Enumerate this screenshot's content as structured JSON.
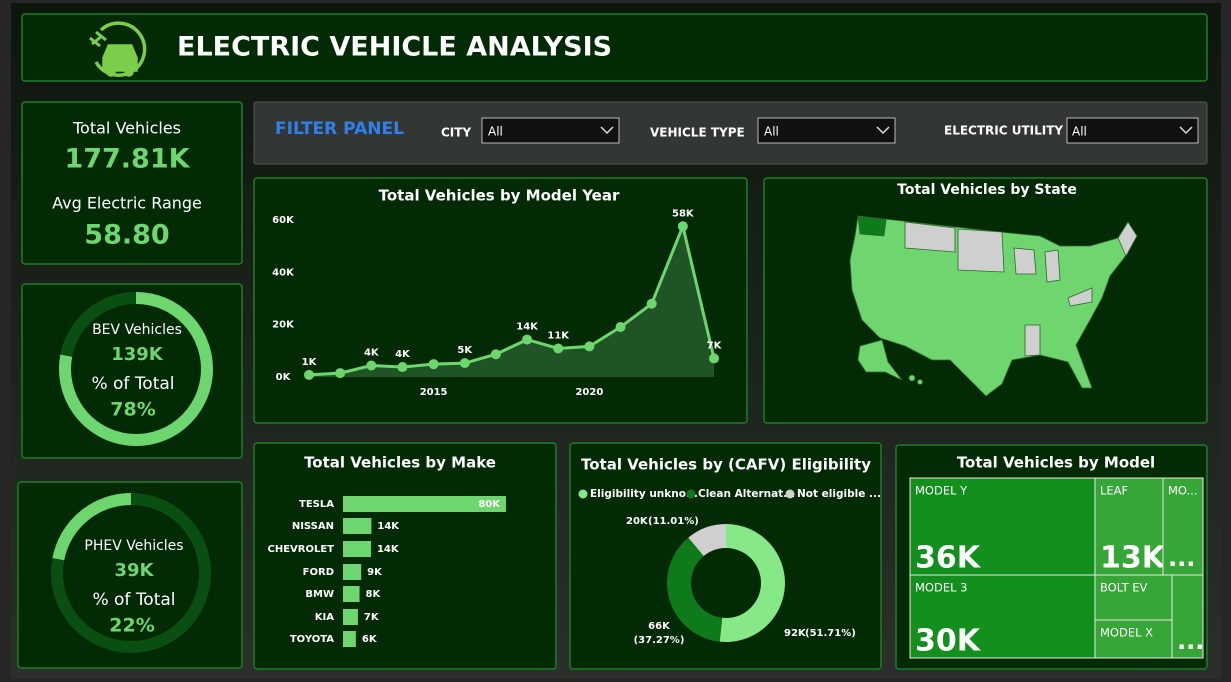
{
  "header": {
    "title": "ELECTRIC VEHICLE ANALYSIS"
  },
  "kpis": {
    "total_label": "Total Vehicles",
    "total_value": "177.81K",
    "range_label": "Avg Electric Range",
    "range_value": "58.80",
    "bev": {
      "label": "BEV Vehicles",
      "value": "139K",
      "share_caption": "% of Total",
      "share": 78,
      "share_label": "78%"
    },
    "phev": {
      "label": "PHEV Vehicles",
      "value": "39K",
      "share_caption": "% of Total",
      "share": 22,
      "share_label": "22%"
    }
  },
  "filters": {
    "title": "FILTER PANEL",
    "items": [
      {
        "label": "CITY",
        "value": "All"
      },
      {
        "label": "VEHICLE TYPE",
        "value": "All"
      },
      {
        "label": "ELECTRIC UTILITY",
        "value": "All"
      }
    ]
  },
  "chart_data": [
    {
      "type": "line",
      "title": "Total Vehicles by Model Year",
      "x": [
        2011,
        2012,
        2013,
        2014,
        2015,
        2016,
        2017,
        2018,
        2019,
        2020,
        2021,
        2022,
        2023,
        2024
      ],
      "values": [
        800,
        1500,
        4400,
        3800,
        4900,
        5300,
        8700,
        14300,
        10900,
        11700,
        19100,
        28000,
        57600,
        7100
      ],
      "value_labels": [
        "1K",
        null,
        "4K",
        "4K",
        null,
        "5K",
        null,
        "14K",
        "11K",
        null,
        null,
        null,
        "58K",
        "7K"
      ],
      "xlim": [
        2011,
        2024
      ],
      "xticks": [
        2015,
        2020
      ],
      "ylim": [
        0,
        60000
      ],
      "yticks": [
        {
          "value": 0,
          "label": "0K"
        },
        {
          "value": 20000,
          "label": "20K"
        },
        {
          "value": 40000,
          "label": "40K"
        },
        {
          "value": 60000,
          "label": "60K"
        }
      ],
      "color": "#6ed66e"
    },
    {
      "type": "map",
      "title": "Total Vehicles by State"
    },
    {
      "type": "hbar",
      "title": "Total Vehicles by Make",
      "categories": [
        "TESLA",
        "NISSAN",
        "CHEVROLET",
        "FORD",
        "BMW",
        "KIA",
        "TOYOTA"
      ],
      "values": [
        79800,
        13900,
        13700,
        8900,
        8100,
        7300,
        6300
      ],
      "value_labels": [
        "80K",
        "14K",
        "14K",
        "9K",
        "8K",
        "7K",
        "6K"
      ],
      "color": "#6ed66e"
    },
    {
      "type": "donut",
      "title": "Total Vehicles by (CAFV) Eligibility",
      "categories": [
        "Eligibility unkno...",
        "Clean Alternat...",
        "Not eligible ..."
      ],
      "values": [
        91940,
        66270,
        19580
      ],
      "value_labels": [
        "92K",
        "66K",
        "20K"
      ],
      "percent_labels": [
        "(51.71%)",
        "(37.27%)",
        "(11.01%)"
      ],
      "colors": [
        "#86e886",
        "#0f7a1c",
        "#cfcfcf"
      ]
    },
    {
      "type": "treemap",
      "title": "Total Vehicles by Model",
      "categories": [
        "MODEL Y",
        "LEAF",
        "MO...",
        "MODEL 3",
        "BOLT EV",
        "MODEL X",
        null
      ],
      "values": [
        36000,
        13200,
        7800,
        30400,
        7000,
        5900,
        5200
      ],
      "value_labels": [
        "36K",
        "13K",
        "...",
        "30K",
        null,
        null,
        "..."
      ],
      "colors": [
        "#138f1e",
        "#36a636",
        "#36a636",
        "#138f1e",
        "#36a636",
        "#36a636",
        "#36a636"
      ]
    }
  ]
}
